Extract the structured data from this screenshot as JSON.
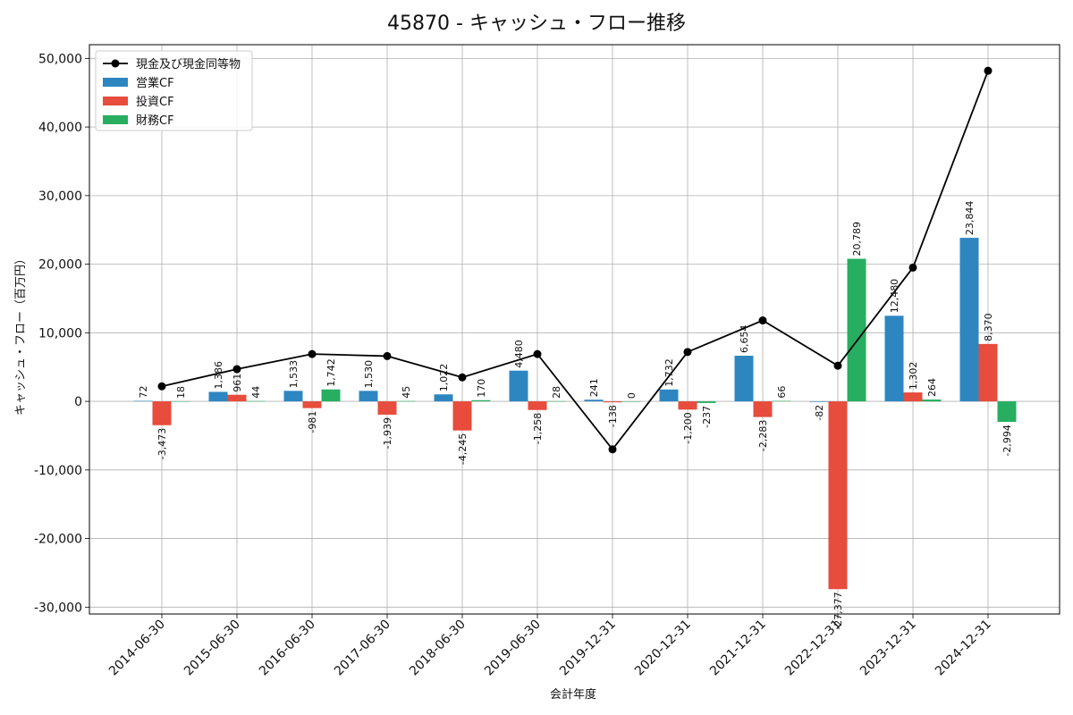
{
  "chart_data": {
    "type": "bar",
    "title": "45870 - キャッシュ・フロー推移",
    "xlabel": "会計年度",
    "ylabel": "キャッシュ・フロー（百万円）",
    "ylim": [
      -31000,
      52000
    ],
    "yticks": [
      -30000,
      -20000,
      -10000,
      0,
      10000,
      20000,
      30000,
      40000,
      50000
    ],
    "ytick_labels": [
      "-30,000",
      "-20,000",
      "-10,000",
      "0",
      "10,000",
      "20,000",
      "30,000",
      "40,000",
      "50,000"
    ],
    "grid": true,
    "legend_position": "top-left",
    "categories": [
      "2014-06-30",
      "2015-06-30",
      "2016-06-30",
      "2017-06-30",
      "2018-06-30",
      "2019-06-30",
      "2019-12-31",
      "2020-12-31",
      "2021-12-31",
      "2022-12-31",
      "2023-12-31",
      "2024-12-31"
    ],
    "series": [
      {
        "name": "営業CF",
        "kind": "bar",
        "color": "#2e86c1",
        "values": [
          72,
          1386,
          1533,
          1530,
          1022,
          4480,
          241,
          1732,
          6654,
          -82,
          12480,
          23844
        ],
        "labels": [
          "72",
          "1,386",
          "1,533",
          "1,530",
          "1,022",
          "4,480",
          "241",
          "1,732",
          "6,654",
          "-82",
          "12,480",
          "23,844"
        ]
      },
      {
        "name": "投資CF",
        "kind": "bar",
        "color": "#e74c3c",
        "values": [
          -3473,
          961,
          -981,
          -1939,
          -4245,
          -1258,
          -138,
          -1200,
          -2283,
          -27377,
          1302,
          8370
        ],
        "labels": [
          "-3,473",
          "961",
          "-981",
          "-1,939",
          "-4,245",
          "-1,258",
          "-138",
          "-1,200",
          "-2,283",
          "-27,377",
          "1,302",
          "8,370"
        ]
      },
      {
        "name": "財務CF",
        "kind": "bar",
        "color": "#27ae60",
        "values": [
          18,
          44,
          1742,
          45,
          170,
          28,
          0,
          -237,
          66,
          20789,
          264,
          -2994
        ],
        "labels": [
          "18",
          "44",
          "1,742",
          "45",
          "170",
          "28",
          "0",
          "-237",
          "66",
          "20,789",
          "264",
          "-2,994"
        ]
      },
      {
        "name": "現金及び現金同等物",
        "kind": "line",
        "color": "#000000",
        "values": [
          2200,
          4700,
          6900,
          6600,
          3500,
          6900,
          -7000,
          7200,
          11800,
          5200,
          19500,
          48200
        ]
      }
    ]
  }
}
